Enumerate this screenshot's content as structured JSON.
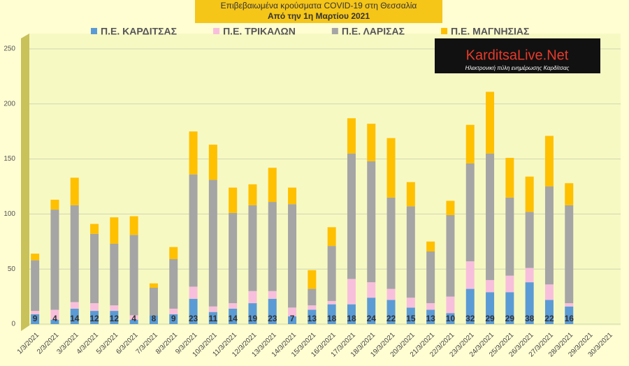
{
  "chart_data": {
    "type": "stacked-bar",
    "title": "Επιβεβαιωμένα κρούσματα COVID-19 στη Θεσσαλία",
    "subtitle": "Από την 1η Μαρτίου 2021",
    "categories": [
      "1/3/2021",
      "2/3/2021",
      "3/3/2021",
      "4/3/2021",
      "5/3/2021",
      "6/3/2021",
      "7/3/2021",
      "8/3/2021",
      "9/3/2021",
      "10/3/2021",
      "11/3/2021",
      "12/3/2021",
      "13/3/2021",
      "14/3/2021",
      "15/3/2021",
      "16/3/2021",
      "17/3/2021",
      "18/3/2021",
      "19/3/2021",
      "20/3/2021",
      "21/3/2021",
      "22/3/2021",
      "23/3/2021",
      "24/3/2021",
      "25/3/2021",
      "26/3/2021",
      "27/3/2021",
      "28/3/2021",
      "29/3/2021",
      "30/3/2021"
    ],
    "series": [
      {
        "name": "Π.Ε. ΚΑΡΔΙΤΣΑΣ",
        "color": "#5b9bd5",
        "values": [
          9,
          4,
          14,
          12,
          12,
          4,
          8,
          9,
          23,
          11,
          14,
          19,
          23,
          7,
          13,
          18,
          18,
          24,
          22,
          15,
          13,
          10,
          32,
          29,
          29,
          38,
          22,
          16,
          null,
          null
        ],
        "data_labels": true
      },
      {
        "name": "Π.Ε. ΤΡΙΚΑΛΩΝ",
        "color": "#f8bfdc",
        "values": [
          3,
          9,
          6,
          7,
          5,
          4,
          0,
          5,
          11,
          5,
          5,
          11,
          7,
          8,
          4,
          3,
          23,
          14,
          10,
          9,
          6,
          15,
          25,
          11,
          15,
          13,
          14,
          3,
          null,
          null
        ]
      },
      {
        "name": "Π.Ε. ΛΑΡΙΣΑΣ",
        "color": "#a5a5a5",
        "values": [
          46,
          91,
          88,
          63,
          56,
          73,
          25,
          45,
          102,
          115,
          82,
          78,
          81,
          94,
          15,
          50,
          114,
          110,
          83,
          83,
          47,
          74,
          89,
          115,
          71,
          51,
          89,
          89,
          null,
          null
        ]
      },
      {
        "name": "Π.Ε. ΜΑΓΝΗΣΙΑΣ",
        "color": "#ffc000",
        "values": [
          6,
          9,
          25,
          9,
          24,
          17,
          4,
          11,
          39,
          32,
          23,
          19,
          31,
          15,
          17,
          17,
          32,
          34,
          54,
          22,
          9,
          13,
          35,
          56,
          36,
          32,
          46,
          20,
          null,
          null
        ]
      }
    ],
    "ylim": [
      0,
      250
    ],
    "yticks": [
      0,
      50,
      100,
      150,
      200,
      250
    ],
    "grid": true,
    "legend": "top"
  },
  "logo": {
    "name": "KarditsaLive.Net",
    "tagline": "Ηλεκτρονική πύλη ενημέρωσης Καρδίτσας"
  }
}
